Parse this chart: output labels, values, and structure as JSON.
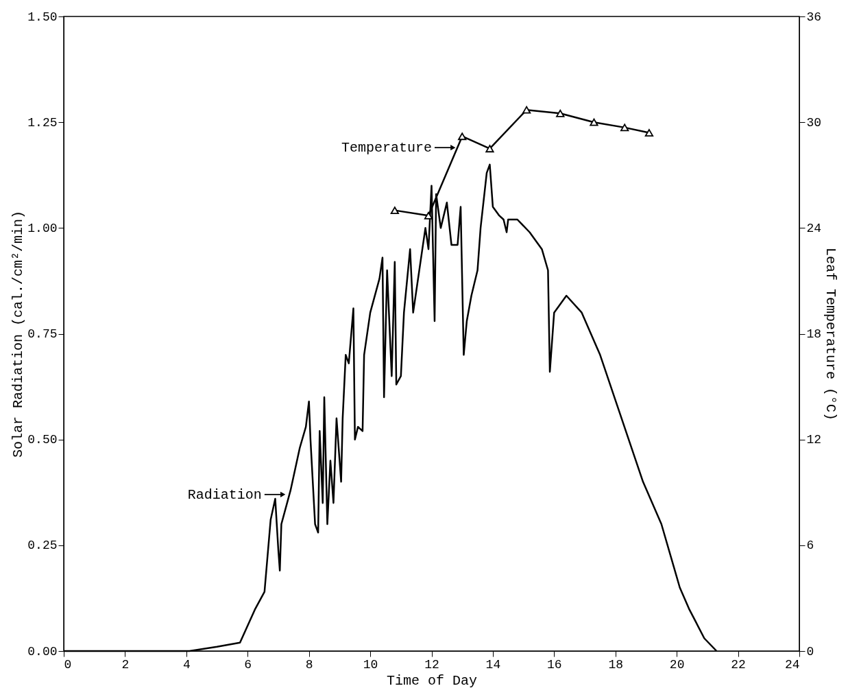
{
  "chart_data": {
    "type": "line",
    "xlabel": "Time of Day",
    "ylabel": "Solar Radiation (cal./cm²/min)",
    "y2label": "Leaf Temperature (°C)",
    "xlim": [
      0,
      24
    ],
    "xticks": [
      0,
      2,
      4,
      6,
      8,
      10,
      12,
      14,
      16,
      18,
      20,
      22,
      24
    ],
    "ylim": [
      0,
      1.5
    ],
    "yticks": [
      {
        "value": 0,
        "label": "0.00"
      },
      {
        "value": 0.25,
        "label": "0.25"
      },
      {
        "value": 0.5,
        "label": "0.50"
      },
      {
        "value": 0.75,
        "label": "0.75"
      },
      {
        "value": 1,
        "label": "1.00"
      },
      {
        "value": 1.25,
        "label": "1.25"
      },
      {
        "value": 1.5,
        "label": "1.50"
      }
    ],
    "y2lim": [
      0,
      36
    ],
    "y2ticks": [
      0,
      6,
      12,
      18,
      24,
      30,
      36
    ],
    "grid": false,
    "legend": false,
    "series": [
      {
        "color": "#000000",
        "marker": "none",
        "x": [
          0,
          4.1,
          5.0,
          5.75,
          6.0,
          6.25,
          6.55,
          6.75,
          6.9,
          7.0,
          7.05,
          7.1,
          7.4,
          7.7,
          7.9,
          8.0,
          8.05,
          8.2,
          8.3,
          8.35,
          8.45,
          8.5,
          8.6,
          8.7,
          8.8,
          8.9,
          9.0,
          9.05,
          9.1,
          9.2,
          9.3,
          9.45,
          9.5,
          9.6,
          9.75,
          9.8,
          10.0,
          10.3,
          10.4,
          10.45,
          10.55,
          10.7,
          10.8,
          10.85,
          11.0,
          11.1,
          11.3,
          11.4,
          11.6,
          11.8,
          11.9,
          12.0,
          12.1,
          12.15,
          12.3,
          12.5,
          12.65,
          12.85,
          12.95,
          13.05,
          13.15,
          13.3,
          13.5,
          13.6,
          13.8,
          13.9,
          14.0,
          14.2,
          14.35,
          14.45,
          14.5,
          14.8,
          15.2,
          15.6,
          15.8,
          15.86,
          16.0,
          16.4,
          16.9,
          17.5,
          18.2,
          18.9,
          19.5,
          19.9,
          20.1,
          20.4,
          20.9,
          21.3
        ],
        "values": [
          0,
          0,
          0.01,
          0.02,
          0.06,
          0.1,
          0.14,
          0.31,
          0.36,
          0.24,
          0.19,
          0.3,
          0.38,
          0.48,
          0.53,
          0.59,
          0.5,
          0.3,
          0.28,
          0.52,
          0.35,
          0.6,
          0.3,
          0.45,
          0.35,
          0.55,
          0.45,
          0.4,
          0.55,
          0.7,
          0.68,
          0.81,
          0.5,
          0.53,
          0.52,
          0.7,
          0.8,
          0.88,
          0.93,
          0.6,
          0.9,
          0.65,
          0.92,
          0.63,
          0.65,
          0.8,
          0.95,
          0.8,
          0.9,
          1.0,
          0.95,
          1.1,
          0.78,
          1.08,
          1.0,
          1.06,
          0.96,
          0.96,
          1.05,
          0.7,
          0.78,
          0.84,
          0.9,
          1.0,
          1.13,
          1.15,
          1.05,
          1.03,
          1.02,
          0.99,
          1.02,
          1.02,
          0.99,
          0.95,
          0.9,
          0.66,
          0.8,
          0.84,
          0.8,
          0.7,
          0.55,
          0.4,
          0.3,
          0.2,
          0.15,
          0.1,
          0.03,
          0
        ]
      },
      {
        "color": "#000000",
        "marker": "triangle",
        "axis": "y2",
        "x": [
          10.8,
          11.9,
          13.0,
          13.9,
          15.1,
          16.2,
          17.3,
          18.3,
          19.1
        ],
        "values": [
          25.0,
          24.7,
          29.2,
          28.5,
          30.7,
          30.5,
          30.0,
          29.7,
          29.4
        ]
      }
    ],
    "annotations": [
      {
        "text": "Temperature",
        "x": 12.7,
        "y": 1.19
      },
      {
        "text": "Radiation",
        "x": 7.15,
        "y": 0.37
      }
    ]
  }
}
